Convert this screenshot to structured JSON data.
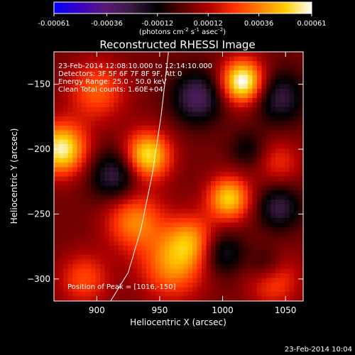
{
  "colorbar": {
    "ticks": [
      "-0.00061",
      "-0.00036",
      "-0.00012",
      "0.00012",
      "0.00036",
      "0.00061"
    ],
    "units_parts": [
      "(photons cm",
      "-2",
      " s",
      "-1",
      " asec",
      "-2",
      ")"
    ],
    "colors": [
      "#0000ff",
      "#3a00c0",
      "#5a1a78",
      "#3a1a40",
      "#000000",
      "#5a0000",
      "#b00000",
      "#ff3000",
      "#ff8000",
      "#ffd000",
      "#ffffff"
    ]
  },
  "chart_data": {
    "type": "heatmap",
    "title": "Reconstructed RHESSI Image",
    "xlabel": "Heliocentric X (arcsec)",
    "ylabel": "Heliocentric Y (arcsec)",
    "xlim": [
      866,
      1064
    ],
    "ylim": [
      -317,
      -125
    ],
    "x_ticks": [
      900,
      950,
      1000,
      1050
    ],
    "y_ticks": [
      -150,
      -200,
      -250,
      -300
    ],
    "value_range": [
      -0.00061,
      0.00061
    ],
    "annotations": [
      "23-Feb-2014 12:08:10.000  to  12:14:10.000",
      "Detectors: 3F 5F 6F 7F 8F 9F, Att 0",
      "Energy Range: 25.0 - 50.0 keV",
      "Clean     Total counts: 1.60E+04"
    ],
    "peak_label": "Position of Peak = [1016,-150]",
    "peak": [
      1016,
      -150
    ],
    "limb": [
      [
        957,
        -125
      ],
      [
        951,
        -175
      ],
      [
        944,
        -220
      ],
      [
        935,
        -262
      ],
      [
        925,
        -295
      ],
      [
        911,
        -317
      ]
    ],
    "blobs": [
      {
        "x": 1016,
        "y": -148,
        "w": 12,
        "v": 1.0
      },
      {
        "x": 872,
        "y": -200,
        "w": 14,
        "v": 0.9
      },
      {
        "x": 940,
        "y": -205,
        "w": 13,
        "v": 0.85
      },
      {
        "x": 1005,
        "y": -238,
        "w": 12,
        "v": 0.75
      },
      {
        "x": 930,
        "y": -255,
        "w": 16,
        "v": 0.55
      },
      {
        "x": 960,
        "y": -290,
        "w": 18,
        "v": 0.55
      },
      {
        "x": 1040,
        "y": -300,
        "w": 14,
        "v": 0.45
      },
      {
        "x": 900,
        "y": -155,
        "w": 16,
        "v": 0.45
      },
      {
        "x": 975,
        "y": -270,
        "w": 14,
        "v": 0.5
      },
      {
        "x": 890,
        "y": -300,
        "w": 14,
        "v": 0.4
      },
      {
        "x": 1045,
        "y": -210,
        "w": 12,
        "v": 0.3
      },
      {
        "x": 980,
        "y": -160,
        "w": 14,
        "v": -0.55
      },
      {
        "x": 915,
        "y": -220,
        "w": 14,
        "v": -0.5
      },
      {
        "x": 1045,
        "y": -160,
        "w": 14,
        "v": -0.45
      },
      {
        "x": 1045,
        "y": -245,
        "w": 12,
        "v": -0.45
      },
      {
        "x": 1000,
        "y": -280,
        "w": 12,
        "v": -0.4
      },
      {
        "x": 1035,
        "y": -290,
        "w": 10,
        "v": -0.35
      },
      {
        "x": 1020,
        "y": -200,
        "w": 10,
        "v": -0.25
      }
    ]
  },
  "footer": {
    "timestamp": "23-Feb-2014 10:04"
  }
}
